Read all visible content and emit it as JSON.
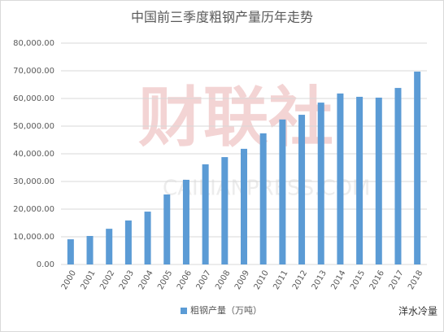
{
  "chart_data": {
    "type": "bar",
    "title": "中国前三季度粗钢产量历年走势",
    "categories": [
      "2000",
      "2001",
      "2002",
      "2003",
      "2004",
      "2005",
      "2006",
      "2007",
      "2008",
      "2009",
      "2010",
      "2011",
      "2012",
      "2013",
      "2014",
      "2015",
      "2016",
      "2017",
      "2018"
    ],
    "series": [
      {
        "name": "粗钢产量（万吨）",
        "color": "#5b9bd5",
        "values": [
          9100,
          10300,
          12900,
          15900,
          19100,
          25300,
          30600,
          36200,
          38800,
          41800,
          47400,
          52400,
          54100,
          58500,
          61800,
          60600,
          60300,
          63800,
          69700
        ]
      }
    ],
    "ylim": [
      0,
      80000
    ],
    "yticks": [
      {
        "value": 0,
        "label": "0.00"
      },
      {
        "value": 10000,
        "label": "10,000.00"
      },
      {
        "value": 20000,
        "label": "20,000.00"
      },
      {
        "value": 30000,
        "label": "30,000.00"
      },
      {
        "value": 40000,
        "label": "40,000.00"
      },
      {
        "value": 50000,
        "label": "50,000.00"
      },
      {
        "value": 60000,
        "label": "60,000.00"
      },
      {
        "value": 70000,
        "label": "70,000.00"
      },
      {
        "value": 80000,
        "label": "80,000.00"
      }
    ],
    "grid": true,
    "legend": "bottom",
    "watermark": "财联社",
    "watermark_sub": "CAILIANPRESS.COM",
    "source": "洋水冷量"
  }
}
